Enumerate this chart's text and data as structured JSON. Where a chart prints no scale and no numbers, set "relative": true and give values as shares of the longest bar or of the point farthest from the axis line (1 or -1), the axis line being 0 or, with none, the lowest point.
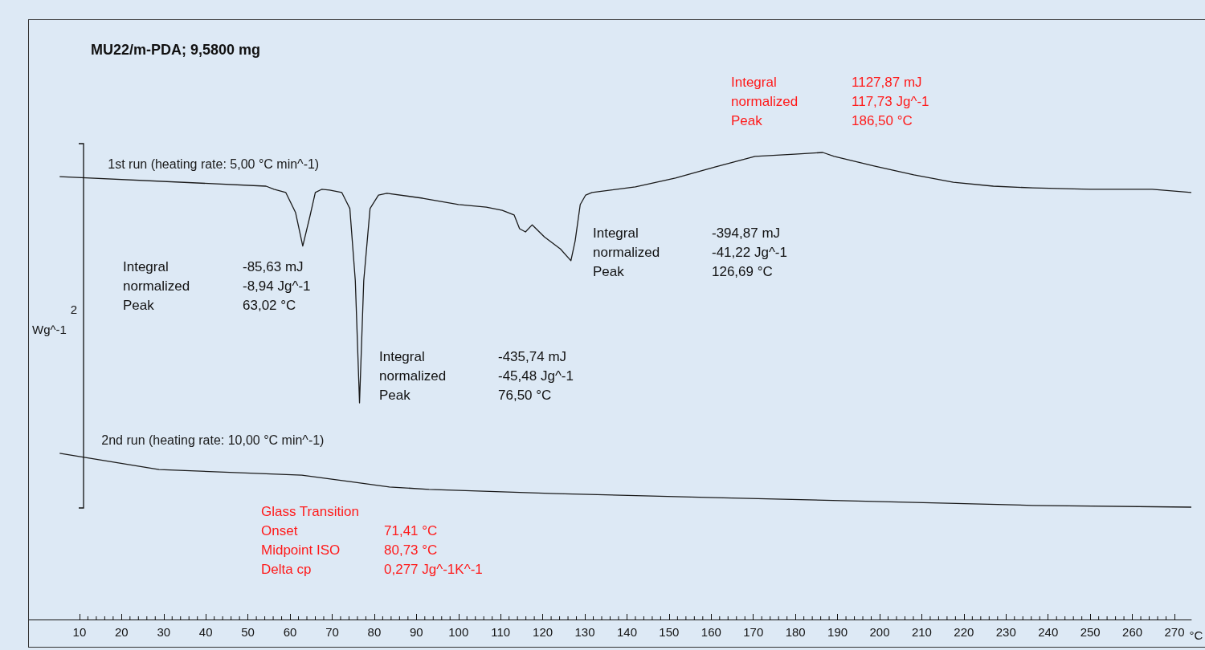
{
  "chart_data": {
    "type": "line",
    "title": "MU22/m-PDA; 9,5800 mg",
    "xlabel": "°C",
    "ylabel": "Wg^-1",
    "relative": true,
    "legend": false,
    "grid": false,
    "marker": "none",
    "xlim": [
      -2,
      274
    ],
    "xticks": [
      10,
      20,
      30,
      40,
      50,
      60,
      70,
      80,
      90,
      100,
      110,
      120,
      130,
      140,
      150,
      160,
      170,
      180,
      190,
      200,
      210,
      220,
      230,
      240,
      250,
      260,
      270
    ],
    "series": [
      {
        "name": "1st run (heating rate: 5,00 °C min^-1)",
        "color": "#1a1a1a",
        "x": [
          5.3,
          54.3,
          56.2,
          59,
          61.3,
          63.02,
          64.7,
          66,
          67.5,
          69.4,
          72.3,
          74.2,
          75.5,
          76.5,
          77.5,
          79,
          81,
          83,
          91.5,
          100,
          106.6,
          110.4,
          113.2,
          114.5,
          115.9,
          117.5,
          120.4,
          124.2,
          126.69,
          127.7,
          128.9,
          130.2,
          131.7,
          142,
          151.5,
          160.9,
          170.4,
          179.8,
          186.5,
          189.2,
          198.7,
          208.1,
          217.5,
          227,
          236.4,
          250,
          264.7,
          274
        ],
        "values": [
          0.932,
          0.905,
          0.896,
          0.887,
          0.831,
          0.736,
          0.819,
          0.887,
          0.896,
          0.894,
          0.887,
          0.842,
          0.638,
          0.294,
          0.638,
          0.842,
          0.88,
          0.885,
          0.871,
          0.853,
          0.846,
          0.837,
          0.824,
          0.785,
          0.776,
          0.796,
          0.762,
          0.728,
          0.695,
          0.751,
          0.853,
          0.88,
          0.887,
          0.903,
          0.928,
          0.959,
          0.989,
          0.995,
          1,
          0.989,
          0.962,
          0.937,
          0.916,
          0.905,
          0.9,
          0.896,
          0.896,
          0.887
        ]
      },
      {
        "name": "2nd run (heating rate: 10,00 °C min^-1)",
        "color": "#1a1a1a",
        "x": [
          5.3,
          28.9,
          62.8,
          74.2,
          83.6,
          93,
          123.2,
          160.9,
          198.7,
          236.4,
          274
        ],
        "values": [
          0.152,
          0.106,
          0.09,
          0.072,
          0.057,
          0.05,
          0.038,
          0.027,
          0.016,
          0.005,
          0
        ]
      }
    ],
    "annotations": [
      "Integral\nnormalized\nPeak",
      "-85,63 mJ\n-8,94 Jg^-1\n63,02 °C",
      "Integral\nnormalized\nPeak",
      "-435,74 mJ\n-45,48 Jg^-1\n76,50 °C",
      "Integral\nnormalized\nPeak",
      "-394,87 mJ\n-41,22 Jg^-1\n126,69 °C",
      "Integral\nnormalized\nPeak",
      "1127,87 mJ\n117,73 Jg^-1\n186,50 °C",
      "Glass Transition\nOnset\nMidpoint ISO\nDelta cp",
      "71,41 °C\n80,73 °C\n0,277 Jg^-1K^-1",
      "2"
    ]
  }
}
